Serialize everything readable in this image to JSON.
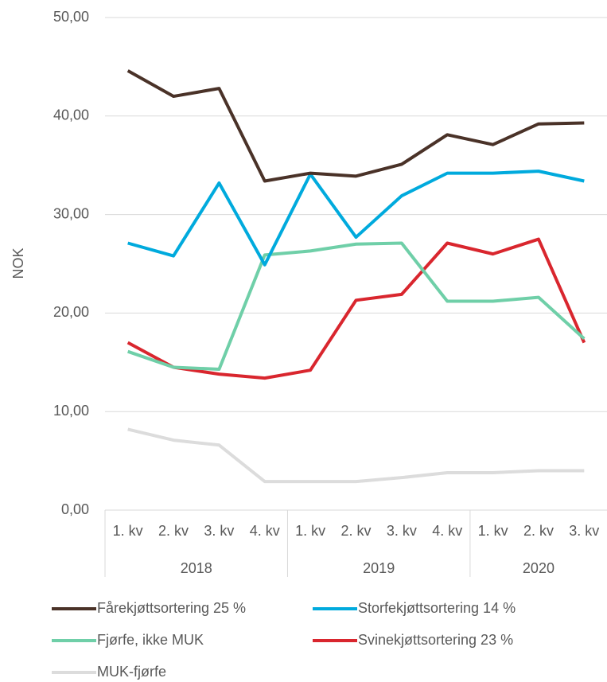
{
  "chart_data": {
    "type": "line",
    "y_label": "NOK",
    "groups": [
      {
        "name": "2018",
        "categories": [
          "1. kv",
          "2. kv",
          "3. kv",
          "4. kv"
        ]
      },
      {
        "name": "2019",
        "categories": [
          "1. kv",
          "2. kv",
          "3. kv",
          "4. kv"
        ]
      },
      {
        "name": "2020",
        "categories": [
          "1. kv",
          "2. kv",
          "3. kv"
        ]
      }
    ],
    "series": [
      {
        "name": "Fårekjøttsortering 25 %",
        "color": "#4a3228",
        "values": [
          44.6,
          42.0,
          42.8,
          33.4,
          34.2,
          33.9,
          35.1,
          38.1,
          37.1,
          39.2,
          39.3
        ]
      },
      {
        "name": "Storfekjøttsortering 14 %",
        "color": "#00aadd",
        "values": [
          27.1,
          25.8,
          33.2,
          24.9,
          34.1,
          27.7,
          31.9,
          34.2,
          34.2,
          34.4,
          33.4
        ]
      },
      {
        "name": "Fjørfe, ikke MUK",
        "color": "#6fcfa8",
        "values": [
          16.1,
          14.5,
          14.3,
          25.9,
          26.3,
          27.0,
          27.1,
          21.2,
          21.2,
          21.6,
          17.4
        ]
      },
      {
        "name": "Svinekjøttsortering 23 %",
        "color": "#d9262e",
        "values": [
          17.0,
          14.5,
          13.8,
          13.4,
          14.2,
          21.3,
          21.9,
          27.1,
          26.0,
          27.5,
          17.0
        ]
      },
      {
        "name": "MUK-fjørfe",
        "color": "#dcdcdc",
        "values": [
          8.2,
          7.1,
          6.6,
          2.9,
          2.9,
          2.9,
          3.3,
          3.8,
          3.8,
          4.0,
          4.0
        ]
      }
    ],
    "ylim": [
      0,
      50
    ],
    "yticks": [
      {
        "value": 0,
        "label": "0,00"
      },
      {
        "value": 10,
        "label": "10,00"
      },
      {
        "value": 20,
        "label": "20,00"
      },
      {
        "value": 30,
        "label": "30,00"
      },
      {
        "value": 40,
        "label": "40,00"
      },
      {
        "value": 50,
        "label": "50,00"
      }
    ],
    "grid": true
  }
}
